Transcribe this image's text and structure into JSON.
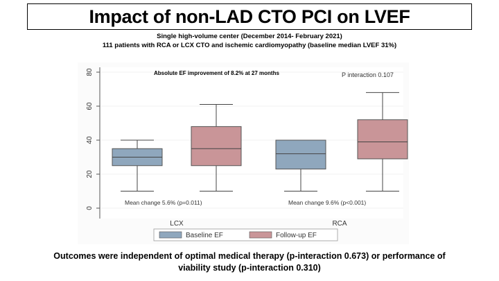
{
  "slide": {
    "title": "Impact of non-LAD CTO PCI on LVEF",
    "subtitle_line1": "Single high-volume center (December 2014- February 2021)",
    "subtitle_line2": "111 patients with RCA or LCX CTO and ischemic cardiomyopathy (baseline median LVEF 31%)",
    "footer_line1": "Outcomes were independent of optimal medical therapy (p-interaction 0.673) or performance of",
    "footer_line2": "viability study (p-interaction 0.310)"
  },
  "colors": {
    "baseline_fill": "#8fa7bd",
    "followup_fill": "#c99598",
    "axis": "#555555",
    "grid": "#e4e4e4"
  },
  "chart_data": {
    "type": "box",
    "title": "",
    "xlabel": "",
    "ylabel": "",
    "ylim": [
      0,
      80
    ],
    "yticks": [
      0,
      20,
      40,
      60,
      80
    ],
    "categories": [
      "LCX",
      "RCA"
    ],
    "series": [
      {
        "name": "Baseline EF",
        "color": "#8fa7bd",
        "boxes": [
          {
            "min": 10,
            "q1": 25,
            "median": 30,
            "q3": 35,
            "max": 40
          },
          {
            "min": 10,
            "q1": 23,
            "median": 32,
            "q3": 40,
            "max": 40
          }
        ]
      },
      {
        "name": "Follow-up EF",
        "color": "#c99598",
        "boxes": [
          {
            "min": 10,
            "q1": 25,
            "median": 35,
            "q3": 48,
            "max": 61
          },
          {
            "min": 10,
            "q1": 29,
            "median": 39,
            "q3": 52,
            "max": 68
          }
        ]
      }
    ],
    "annotations": {
      "top_left": "Absolute EF improvement of  8.2% at 27 months",
      "top_right": "P interaction 0.107",
      "group_notes": [
        "Mean change 5.6% (p=0.011)",
        "Mean change 9.6% (p<0.001)"
      ]
    },
    "legend": [
      "Baseline EF",
      "Follow-up EF"
    ]
  }
}
